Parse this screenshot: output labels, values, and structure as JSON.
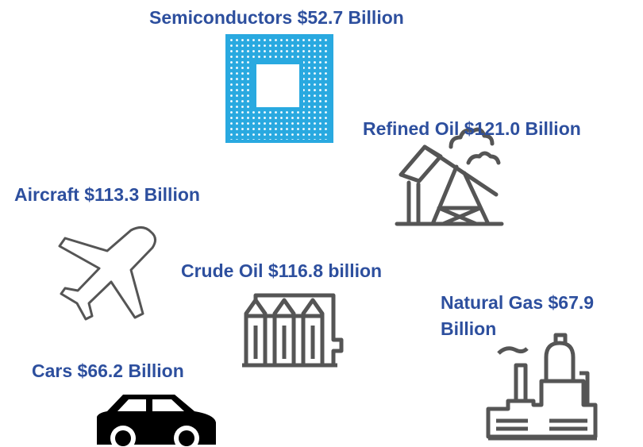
{
  "items": [
    {
      "label": "Semiconductors $52.7 Billion"
    },
    {
      "label": "Refined Oil $121.0 Billion"
    },
    {
      "label": "Aircraft $113.3 Billion"
    },
    {
      "label": "Crude Oil $116.8 billion"
    },
    {
      "label": "Natural Gas $67.9 Billion"
    },
    {
      "label": "Cars $66.2 Billion"
    }
  ]
}
